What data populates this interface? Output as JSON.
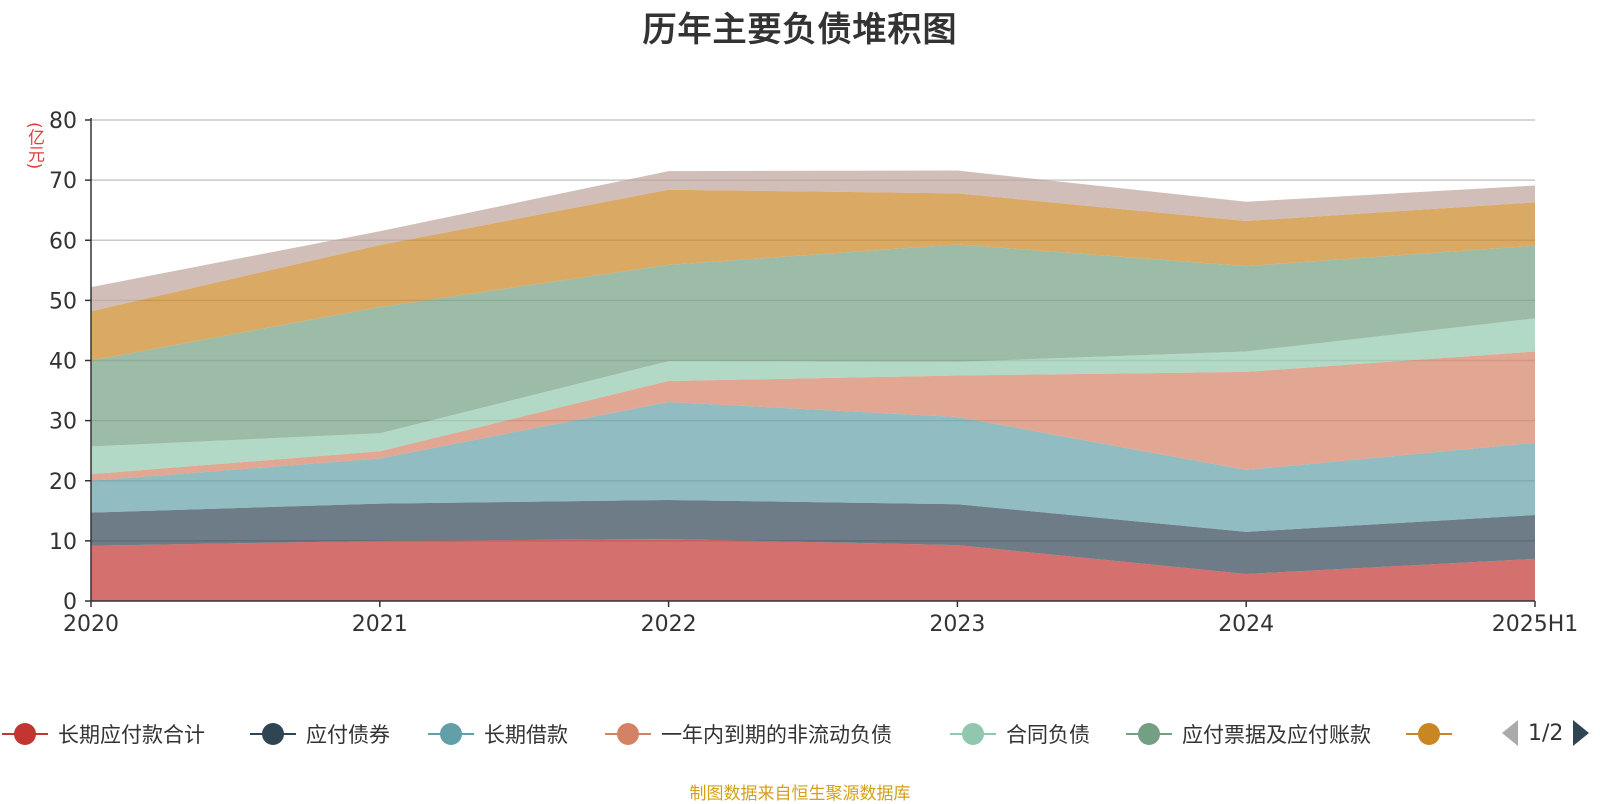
{
  "chart_data": {
    "type": "area",
    "stacked": true,
    "title": "历年主要负债堆积图",
    "unit_label": "(亿元)",
    "x": [
      "2020",
      "2021",
      "2022",
      "2023",
      "2024",
      "2025H1"
    ],
    "ylim": [
      0,
      80
    ],
    "y_ticks": [
      "0",
      "10",
      "20",
      "30",
      "40",
      "50",
      "60",
      "70",
      "80"
    ],
    "grid": true,
    "legend_position": "bottom",
    "series": [
      {
        "name": "长期应付款合计",
        "color": "#c23531",
        "values": [
          9.2,
          10.0,
          10.3,
          9.3,
          4.5,
          7.0
        ]
      },
      {
        "name": "应付债券",
        "color": "#2f4554",
        "values": [
          5.5,
          6.2,
          6.5,
          6.8,
          7.0,
          7.3
        ]
      },
      {
        "name": "长期借款",
        "color": "#61a0a8",
        "values": [
          5.3,
          7.5,
          16.3,
          14.5,
          10.3,
          12.0
        ]
      },
      {
        "name": "一年内到期的非流动负债",
        "color": "#d48265",
        "values": [
          1.1,
          1.2,
          3.5,
          6.9,
          16.3,
          15.2
        ]
      },
      {
        "name": "合同负债",
        "color": "#91c7ae",
        "values": [
          4.6,
          3.0,
          3.3,
          2.3,
          3.4,
          5.5
        ]
      },
      {
        "name": "应付票据及应付账款",
        "color": "#749f83",
        "values": [
          14.3,
          21.0,
          16.0,
          19.5,
          14.2,
          12.1
        ]
      },
      {
        "name": "",
        "color": "#ca8622",
        "values": [
          8.2,
          10.3,
          12.5,
          8.5,
          7.5,
          7.2
        ]
      },
      {
        "name": "",
        "color": "#bda29a",
        "values": [
          4.0,
          2.3,
          3.1,
          3.8,
          3.2,
          2.8
        ]
      }
    ]
  },
  "legend": {
    "items": [
      {
        "label": "长期应付款合计",
        "color": "#c23531"
      },
      {
        "label": "应付债券",
        "color": "#2f4554"
      },
      {
        "label": "长期借款",
        "color": "#61a0a8"
      },
      {
        "label": "一年内到期的非流动负债",
        "color": "#d48265"
      },
      {
        "label": "合同负债",
        "color": "#91c7ae"
      },
      {
        "label": "应付票据及应付账款",
        "color": "#749f83"
      },
      {
        "label": "",
        "color": "#ca8622"
      }
    ],
    "page_indicator": "1/2",
    "prev_icon": "triangle-left-icon",
    "next_icon": "triangle-right-icon"
  },
  "footer": {
    "source": "制图数据来自恒生聚源数据库"
  }
}
